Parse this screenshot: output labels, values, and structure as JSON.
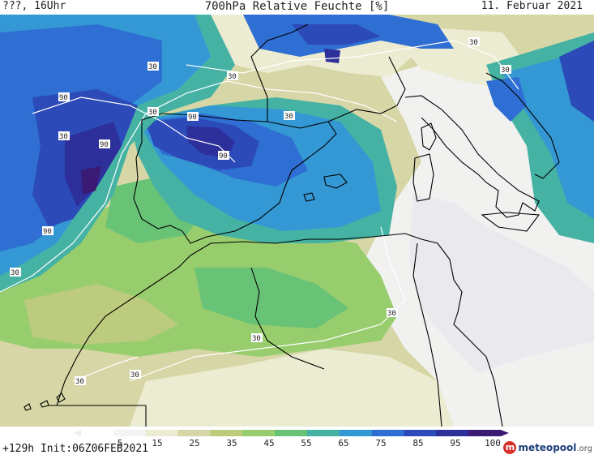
{
  "header": {
    "left": "???, 16Uhr",
    "title": "700hPa Relative Feuchte [%]",
    "date": "11. Februar 2021"
  },
  "footer": {
    "init": "+129h Init:06Z06FEB2021",
    "logo_name": "meteopool",
    "logo_domain": ".org"
  },
  "colorbar": {
    "tick_labels": [
      "5",
      "15",
      "25",
      "35",
      "45",
      "55",
      "65",
      "75",
      "85",
      "95",
      "100"
    ],
    "colors": [
      "#ffffff",
      "#f4f4f6",
      "#ececd2",
      "#d6d6a6",
      "#bccb7e",
      "#97cd6d",
      "#68c377",
      "#45b2a4",
      "#3498d4",
      "#2f6ed3",
      "#2c4ab8",
      "#2d2f9a",
      "#3a1a73"
    ]
  },
  "contour_labels": [
    "30",
    "30",
    "30",
    "30",
    "30",
    "30",
    "30",
    "30",
    "30",
    "30",
    "30",
    "90",
    "90",
    "90",
    "90",
    "90"
  ],
  "map_colors": {
    "background": "#d6d6a6",
    "coast": "#000000",
    "contour": "#ffffff"
  }
}
